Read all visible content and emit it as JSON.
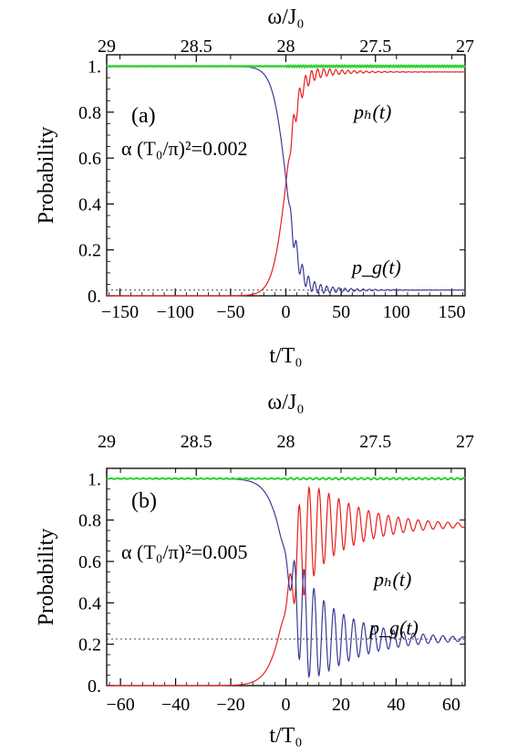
{
  "chart_data": [
    {
      "panel": "(a)",
      "type": "line",
      "xlabel": "t/T₀",
      "ylabel": "Probability",
      "top_axis_label": "ω/J₀",
      "xlim": [
        -162,
        162
      ],
      "ylim": [
        0,
        1.05
      ],
      "x_ticks": [
        "−150",
        "−100",
        "−50",
        "0",
        "50",
        "100",
        "150"
      ],
      "x_tick_values": [
        -150,
        -100,
        -50,
        0,
        50,
        100,
        150
      ],
      "y_ticks": [
        "0.",
        "0.2",
        "0.4",
        "0.6",
        "0.8",
        "1."
      ],
      "y_tick_values": [
        0,
        0.2,
        0.4,
        0.6,
        0.8,
        1.0
      ],
      "top_ticks": [
        "29",
        "28.5",
        "28",
        "27.5",
        "27"
      ],
      "top_tick_t": [
        -162,
        -81,
        0,
        81,
        162
      ],
      "annotation": "α (T₀/π)²=0.002",
      "asymptote": 0.025,
      "p_final": 0.975,
      "transition_width": 6,
      "osc": {
        "amp": 0.055,
        "period": 5.5,
        "decay": 26,
        "onset": 4
      },
      "series": [
        {
          "name": "pₕ(t)",
          "role": "ph",
          "color": "#e8201b"
        },
        {
          "name": "p_g(t)",
          "role": "pg",
          "color": "#3a3d96"
        },
        {
          "role": "sum",
          "color": "#2fd12f"
        }
      ],
      "series_labels": {
        "ph": "pₕ(t)",
        "pg": "p_g(t)"
      }
    },
    {
      "panel": "(b)",
      "type": "line",
      "xlabel": "t/T₀",
      "ylabel": "Probability",
      "top_axis_label": "ω/J₀",
      "xlim": [
        -65,
        65
      ],
      "ylim": [
        0,
        1.05
      ],
      "x_ticks": [
        "−60",
        "−40",
        "−20",
        "0",
        "20",
        "40",
        "60"
      ],
      "x_tick_values": [
        -60,
        -40,
        -20,
        0,
        20,
        40,
        60
      ],
      "y_ticks": [
        "0.",
        "0.2",
        "0.4",
        "0.6",
        "0.8",
        "1."
      ],
      "y_tick_values": [
        0,
        0.2,
        0.4,
        0.6,
        0.8,
        1.0
      ],
      "top_ticks": [
        "29",
        "28.5",
        "28",
        "27.5",
        "27"
      ],
      "top_tick_t": [
        -65,
        -32.5,
        0,
        32.5,
        65
      ],
      "annotation": "α (T₀/π)²=0.005",
      "asymptote": 0.225,
      "p_final": 0.775,
      "transition_width": 3.2,
      "osc": {
        "amp": 0.32,
        "period": 3.6,
        "decay": 18,
        "onset": 3
      },
      "series": [
        {
          "name": "pₕ(t)",
          "role": "ph",
          "color": "#e8201b"
        },
        {
          "name": "p_g(t)",
          "role": "pg",
          "color": "#3a3d96"
        },
        {
          "role": "sum",
          "color": "#2fd12f"
        }
      ],
      "series_labels": {
        "ph": "pₕ(t)",
        "pg": "p_g(t)"
      }
    }
  ]
}
